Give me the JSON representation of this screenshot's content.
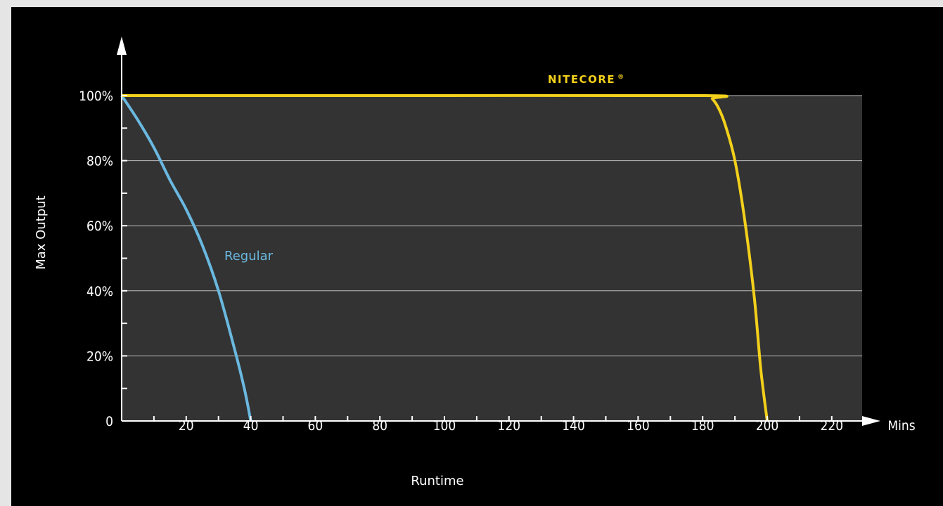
{
  "chart_data": {
    "type": "line",
    "xlabel": "Runtime",
    "ylabel": "Max Output",
    "x_unit_label": "Mins",
    "xlim": [
      0,
      230
    ],
    "ylim": [
      0,
      100
    ],
    "x_ticks": [
      20,
      40,
      60,
      80,
      100,
      120,
      140,
      160,
      180,
      200,
      220
    ],
    "x_tick_labels": [
      "20",
      "40",
      "60",
      "80",
      "100",
      "120",
      "140",
      "160",
      "180",
      "200",
      "220"
    ],
    "y_ticks": [
      0,
      20,
      40,
      60,
      80,
      100
    ],
    "y_tick_labels": [
      "0",
      "20%",
      "40%",
      "60%",
      "80%",
      "100%"
    ],
    "grid": "horizontal",
    "series": [
      {
        "name": "Regular",
        "color": "#6ab8e0",
        "x": [
          0,
          5,
          10,
          15,
          20,
          25,
          30,
          35,
          38,
          40
        ],
        "y": [
          100,
          92.5,
          84,
          74,
          65,
          54,
          40,
          22,
          10,
          0
        ]
      },
      {
        "name": "NITECORE",
        "brand_mark": "®",
        "color": "#f2d01b",
        "x": [
          0,
          100,
          181,
          183,
          185,
          187,
          190,
          193,
          196,
          198,
          200
        ],
        "y": [
          100,
          100,
          100,
          99,
          96,
          91,
          80,
          62,
          38,
          16,
          0
        ]
      }
    ]
  },
  "colors": {
    "background": "#000000",
    "plot_area": "#333333",
    "grid": "#bfbfbf",
    "axis": "#ffffff",
    "page": "#e5e5e5"
  }
}
